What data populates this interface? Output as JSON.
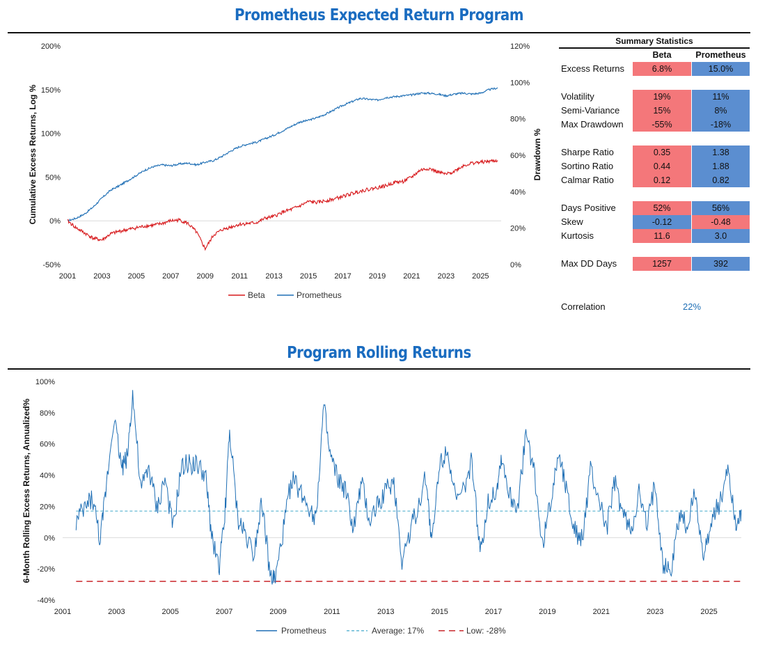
{
  "titles": {
    "main": "Prometheus Expected Return Program",
    "rolling": "Program Rolling Returns"
  },
  "colors": {
    "title": "#1a6cc0",
    "beta": "#d7191c",
    "prometheus": "#1f6fb5",
    "cell_red": "#f4777a",
    "cell_blue": "#5b8ed0",
    "average_line": "#3fa7c9",
    "low_line": "#c9262b"
  },
  "chart_data": [
    {
      "type": "line",
      "title": "",
      "xlabel": "",
      "ylabel": "Cumulative Excess Returns, Log %",
      "y2label": "Drawdown %",
      "xlim": [
        2001,
        2026.2
      ],
      "ylim": [
        -50,
        200
      ],
      "y2lim": [
        0,
        120
      ],
      "x_ticks": [
        "2001",
        "2003",
        "2005",
        "2007",
        "2009",
        "2011",
        "2013",
        "2015",
        "2017",
        "2019",
        "2021",
        "2023",
        "2025"
      ],
      "y_ticks": [
        "-50%",
        "0%",
        "50%",
        "100%",
        "150%",
        "200%"
      ],
      "y2_ticks": [
        "0%",
        "20%",
        "40%",
        "60%",
        "80%",
        "100%",
        "120%"
      ],
      "legend": [
        "Beta",
        "Prometheus"
      ],
      "legend_position": "bottom",
      "series": [
        {
          "name": "Prometheus",
          "x": [
            2001,
            2001.5,
            2002,
            2002.5,
            2003,
            2003.5,
            2004,
            2004.5,
            2005,
            2005.5,
            2006,
            2006.5,
            2007,
            2007.5,
            2008,
            2008.5,
            2009,
            2009.5,
            2010,
            2010.5,
            2011,
            2011.5,
            2012,
            2012.5,
            2013,
            2013.5,
            2014,
            2014.5,
            2015,
            2015.5,
            2016,
            2016.5,
            2017,
            2017.5,
            2018,
            2018.5,
            2019,
            2019.5,
            2020,
            2020.5,
            2021,
            2021.5,
            2022,
            2022.5,
            2023,
            2023.5,
            2024,
            2024.5,
            2025,
            2025.5,
            2026
          ],
          "y": [
            0,
            3,
            8,
            16,
            26,
            35,
            40,
            46,
            52,
            58,
            62,
            64,
            63,
            65,
            66,
            64,
            67,
            69,
            74,
            80,
            85,
            88,
            90,
            94,
            98,
            103,
            108,
            113,
            115,
            118,
            122,
            127,
            132,
            136,
            140,
            139,
            138,
            141,
            142,
            143,
            144,
            146,
            146,
            145,
            143,
            145,
            146,
            145,
            146,
            150,
            152
          ]
        },
        {
          "name": "Beta",
          "x": [
            2001,
            2001.5,
            2002,
            2002.5,
            2003,
            2003.5,
            2004,
            2004.5,
            2005,
            2005.5,
            2006,
            2006.5,
            2007,
            2007.5,
            2008,
            2008.5,
            2009,
            2009.5,
            2010,
            2010.5,
            2011,
            2011.5,
            2012,
            2012.5,
            2013,
            2013.5,
            2014,
            2014.5,
            2015,
            2015.5,
            2016,
            2016.5,
            2017,
            2017.5,
            2018,
            2018.5,
            2019,
            2019.5,
            2020,
            2020.5,
            2021,
            2021.5,
            2022,
            2022.5,
            2023,
            2023.5,
            2024,
            2024.5,
            2025,
            2025.5,
            2026
          ],
          "y": [
            0,
            -8,
            -14,
            -20,
            -22,
            -15,
            -12,
            -10,
            -8,
            -6,
            -5,
            -3,
            0,
            1,
            -3,
            -13,
            -32,
            -16,
            -10,
            -7,
            -4,
            -3,
            -2,
            3,
            5,
            10,
            13,
            17,
            22,
            21,
            23,
            25,
            28,
            31,
            34,
            36,
            38,
            40,
            44,
            45,
            50,
            58,
            60,
            56,
            53,
            57,
            63,
            66,
            67,
            68,
            69
          ]
        }
      ]
    },
    {
      "type": "line",
      "title": "Program Rolling Returns",
      "xlabel": "",
      "ylabel": "6-Month Rolling Excess Returns, Annualized%",
      "xlim": [
        2001,
        2026.2
      ],
      "ylim": [
        -40,
        100
      ],
      "x_ticks": [
        "2001",
        "2003",
        "2005",
        "2007",
        "2009",
        "2011",
        "2013",
        "2015",
        "2017",
        "2019",
        "2021",
        "2023",
        "2025"
      ],
      "y_ticks": [
        "-40%",
        "-20%",
        "0%",
        "20%",
        "40%",
        "60%",
        "80%",
        "100%"
      ],
      "legend": [
        "Prometheus",
        "Average: 17%",
        "Low: -28%"
      ],
      "legend_position": "bottom",
      "average": 17,
      "low": -28,
      "series": [
        {
          "name": "Prometheus",
          "x": [
            2001.5,
            2001.8,
            2002.1,
            2002.4,
            2002.6,
            2002.9,
            2003.2,
            2003.4,
            2003.6,
            2003.9,
            2004.2,
            2004.5,
            2004.8,
            2005.1,
            2005.4,
            2005.7,
            2006.0,
            2006.3,
            2006.5,
            2006.8,
            2007.0,
            2007.2,
            2007.5,
            2007.8,
            2008.1,
            2008.4,
            2008.7,
            2008.9,
            2009.2,
            2009.5,
            2009.8,
            2010.1,
            2010.4,
            2010.7,
            2010.9,
            2011.2,
            2011.5,
            2011.8,
            2012.1,
            2012.4,
            2012.7,
            2013.0,
            2013.3,
            2013.6,
            2013.9,
            2014.2,
            2014.5,
            2014.7,
            2015.0,
            2015.3,
            2015.6,
            2015.9,
            2016.2,
            2016.5,
            2016.8,
            2017.1,
            2017.3,
            2017.6,
            2017.9,
            2018.2,
            2018.5,
            2018.8,
            2019.1,
            2019.4,
            2019.7,
            2020.0,
            2020.3,
            2020.6,
            2020.9,
            2021.2,
            2021.5,
            2021.8,
            2022.1,
            2022.4,
            2022.7,
            2023.0,
            2023.3,
            2023.6,
            2023.9,
            2024.2,
            2024.5,
            2024.8,
            2025.1,
            2025.4,
            2025.7,
            2026.0,
            2026.2
          ],
          "y": [
            10,
            18,
            26,
            -2,
            30,
            78,
            45,
            52,
            92,
            30,
            45,
            18,
            38,
            5,
            44,
            48,
            46,
            40,
            6,
            -20,
            8,
            68,
            12,
            2,
            -10,
            25,
            -25,
            -27,
            5,
            38,
            30,
            22,
            12,
            85,
            54,
            38,
            30,
            5,
            35,
            10,
            22,
            30,
            36,
            -15,
            5,
            20,
            40,
            -5,
            48,
            58,
            22,
            30,
            50,
            -12,
            24,
            30,
            52,
            26,
            20,
            66,
            44,
            -5,
            20,
            56,
            33,
            5,
            -2,
            43,
            25,
            5,
            35,
            15,
            4,
            28,
            6,
            35,
            -18,
            -22,
            15,
            8,
            30,
            -15,
            12,
            22,
            46,
            8,
            18
          ]
        }
      ]
    }
  ],
  "stats": {
    "title": "Summary Statistics",
    "col1": "Beta",
    "col2": "Prometheus",
    "rows": [
      {
        "label": "Excess Returns",
        "beta": "6.8%",
        "prom": "15.0%",
        "beta_color": "red",
        "prom_color": "blue"
      },
      {
        "label": "Volatility",
        "beta": "19%",
        "prom": "11%",
        "beta_color": "red",
        "prom_color": "blue"
      },
      {
        "label": "Semi-Variance",
        "beta": "15%",
        "prom": "8%",
        "beta_color": "red",
        "prom_color": "blue"
      },
      {
        "label": "Max Drawdown",
        "beta": "-55%",
        "prom": "-18%",
        "beta_color": "red",
        "prom_color": "blue"
      },
      {
        "label": "Sharpe Ratio",
        "beta": "0.35",
        "prom": "1.38",
        "beta_color": "red",
        "prom_color": "blue"
      },
      {
        "label": "Sortino Ratio",
        "beta": "0.44",
        "prom": "1.88",
        "beta_color": "red",
        "prom_color": "blue"
      },
      {
        "label": "Calmar Ratio",
        "beta": "0.12",
        "prom": "0.82",
        "beta_color": "red",
        "prom_color": "blue"
      },
      {
        "label": "Days Positive",
        "beta": "52%",
        "prom": "56%",
        "beta_color": "red",
        "prom_color": "blue"
      },
      {
        "label": "Skew",
        "beta": "-0.12",
        "prom": "-0.48",
        "beta_color": "blue",
        "prom_color": "red"
      },
      {
        "label": "Kurtosis",
        "beta": "11.6",
        "prom": "3.0",
        "beta_color": "red",
        "prom_color": "blue"
      },
      {
        "label": "Max DD Days",
        "beta": "1257",
        "prom": "392",
        "beta_color": "red",
        "prom_color": "blue"
      }
    ],
    "correlation_label": "Correlation",
    "correlation_value": "22%"
  }
}
